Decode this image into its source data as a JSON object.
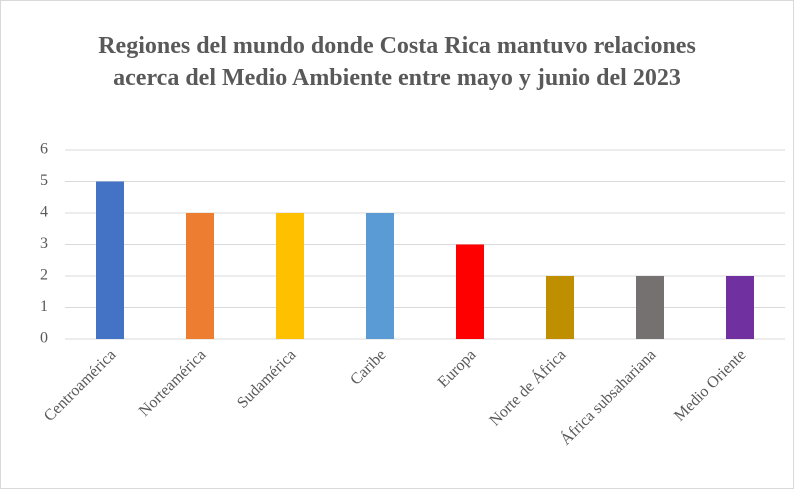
{
  "chart_data": {
    "type": "bar",
    "title": "Regiones del mundo donde Costa Rica mantuvo relaciones acerca del Medio Ambiente entre mayo y junio del 2023",
    "categories": [
      "Centroamérica",
      "Norteamérica",
      "Sudamérica",
      "Caribe",
      "Europa",
      "Norte de África",
      "África subsahariana",
      "Medio Oriente"
    ],
    "values": [
      5,
      4,
      4,
      4,
      3,
      2,
      2,
      2
    ],
    "colors": [
      "#4472c4",
      "#ed7d31",
      "#ffc000",
      "#5b9bd5",
      "#ff0000",
      "#bf8f00",
      "#767171",
      "#7030a0"
    ],
    "ylim": [
      0,
      6
    ],
    "yticks": [
      0,
      1,
      2,
      3,
      4,
      5,
      6
    ],
    "grid": true
  }
}
